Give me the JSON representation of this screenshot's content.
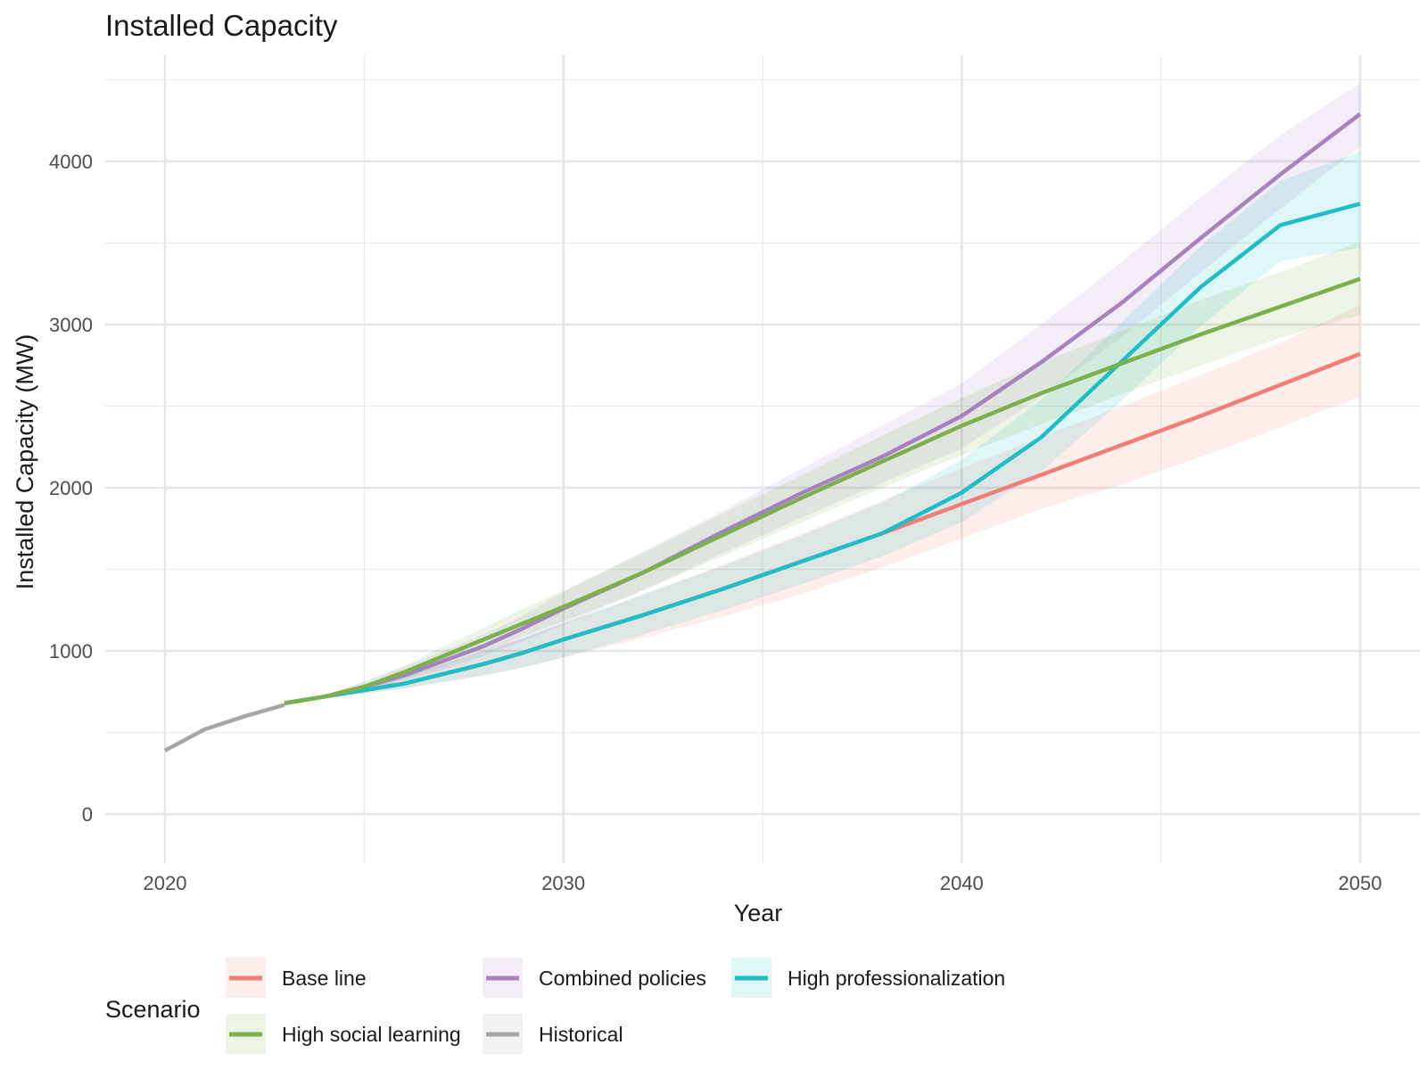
{
  "chart_data": {
    "type": "line",
    "title": "Installed Capacity",
    "xlabel": "Year",
    "ylabel": "Installed Capacity (MW)",
    "xlim": [
      2018.5,
      2051.5
    ],
    "ylim": [
      -300,
      4650
    ],
    "x_ticks": [
      2020,
      2030,
      2040,
      2050
    ],
    "x_tick_labels": [
      "2020",
      "2030",
      "2040",
      "2050"
    ],
    "y_ticks": [
      0,
      1000,
      2000,
      3000,
      4000
    ],
    "y_tick_labels": [
      "0",
      "1000",
      "2000",
      "3000",
      "4000"
    ],
    "grid": true,
    "legend": {
      "title": "Scenario",
      "position": "bottom"
    },
    "series": [
      {
        "name": "Historical",
        "color": "#a6a6a6",
        "x": [
          2020,
          2021,
          2022,
          2023
        ],
        "values": [
          390,
          520,
          600,
          670
        ]
      },
      {
        "name": "Base line",
        "color": "#f07e74",
        "x": [
          2023,
          2024,
          2025,
          2026,
          2027,
          2028,
          2029,
          2030,
          2032,
          2034,
          2036,
          2038,
          2040,
          2042,
          2044,
          2046,
          2048,
          2050
        ],
        "values": [
          680,
          720,
          760,
          800,
          860,
          920,
          990,
          1070,
          1220,
          1380,
          1550,
          1720,
          1900,
          2080,
          2260,
          2440,
          2630,
          2820
        ],
        "band_lower": [
          680,
          715,
          740,
          770,
          810,
          850,
          900,
          960,
          1080,
          1210,
          1350,
          1510,
          1690,
          1870,
          2020,
          2190,
          2370,
          2560
        ],
        "band_upper": [
          680,
          730,
          790,
          850,
          920,
          1000,
          1080,
          1170,
          1340,
          1530,
          1720,
          1920,
          2120,
          2310,
          2500,
          2690,
          2890,
          3120
        ]
      },
      {
        "name": "Combined policies",
        "color": "#a682c0",
        "x": [
          2023,
          2024,
          2025,
          2026,
          2027,
          2028,
          2029,
          2030,
          2032,
          2034,
          2036,
          2038,
          2040,
          2042,
          2044,
          2046,
          2048,
          2050
        ],
        "values": [
          680,
          720,
          780,
          850,
          940,
          1030,
          1140,
          1260,
          1480,
          1730,
          1970,
          2190,
          2440,
          2770,
          3130,
          3530,
          3920,
          4290
        ],
        "band_lower": [
          680,
          715,
          760,
          820,
          890,
          970,
          1060,
          1160,
          1370,
          1600,
          1820,
          2030,
          2240,
          2560,
          2920,
          3320,
          3710,
          4090
        ],
        "band_upper": [
          680,
          730,
          810,
          900,
          1000,
          1100,
          1220,
          1360,
          1610,
          1860,
          2120,
          2380,
          2640,
          3000,
          3380,
          3780,
          4160,
          4480
        ]
      },
      {
        "name": "High professionalization",
        "color": "#1fbec6",
        "x": [
          2023,
          2024,
          2025,
          2026,
          2027,
          2028,
          2029,
          2030,
          2032,
          2034,
          2036,
          2038,
          2040,
          2042,
          2044,
          2046,
          2048,
          2050
        ],
        "values": [
          680,
          720,
          760,
          800,
          860,
          920,
          990,
          1070,
          1220,
          1380,
          1550,
          1720,
          1970,
          2310,
          2770,
          3230,
          3610,
          3740
        ],
        "band_lower": [
          680,
          715,
          740,
          770,
          810,
          850,
          900,
          960,
          1100,
          1250,
          1410,
          1580,
          1790,
          2100,
          2530,
          2990,
          3390,
          3470
        ],
        "band_upper": [
          680,
          730,
          790,
          850,
          920,
          1000,
          1080,
          1170,
          1350,
          1520,
          1710,
          1910,
          2170,
          2540,
          3010,
          3480,
          3880,
          4060
        ]
      },
      {
        "name": "High social learning",
        "color": "#7bb04b",
        "x": [
          2023,
          2024,
          2025,
          2026,
          2027,
          2028,
          2029,
          2030,
          2032,
          2034,
          2036,
          2038,
          2040,
          2042,
          2044,
          2046,
          2048,
          2050
        ],
        "values": [
          680,
          720,
          780,
          870,
          970,
          1070,
          1170,
          1270,
          1480,
          1710,
          1940,
          2160,
          2380,
          2580,
          2760,
          2940,
          3110,
          3280
        ],
        "band_lower": [
          680,
          715,
          760,
          830,
          910,
          1000,
          1090,
          1180,
          1370,
          1580,
          1790,
          2000,
          2200,
          2390,
          2570,
          2750,
          2920,
          3060
        ],
        "band_upper": [
          680,
          730,
          810,
          910,
          1030,
          1140,
          1260,
          1370,
          1600,
          1840,
          2080,
          2320,
          2550,
          2770,
          2960,
          3150,
          3320,
          3510
        ]
      }
    ],
    "band_opacity": 0.14
  },
  "legend": {
    "title": "Scenario",
    "items": [
      {
        "label": "Base line",
        "series": "Base line"
      },
      {
        "label": "Combined policies",
        "series": "Combined policies"
      },
      {
        "label": "High professionalization",
        "series": "High professionalization"
      },
      {
        "label": "High social learning",
        "series": "High social learning"
      },
      {
        "label": "Historical",
        "series": "Historical"
      }
    ]
  }
}
